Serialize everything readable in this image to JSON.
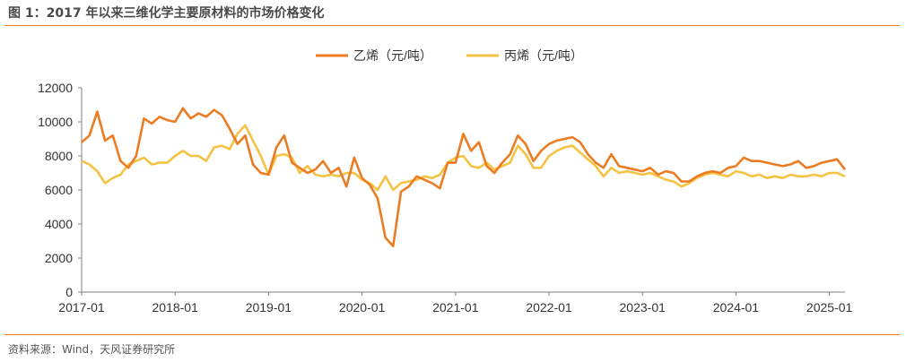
{
  "figure": {
    "title": "图 1：2017 年以来三维化学主要原材料的市场价格变化",
    "source": "资料来源：Wind，天风证券研究所",
    "accent_color": "#ec7c22"
  },
  "chart_data": {
    "type": "line",
    "title": "",
    "xlabel": "",
    "ylabel": "",
    "ylim": [
      0,
      12000
    ],
    "yticks": [
      0,
      2000,
      4000,
      6000,
      8000,
      10000,
      12000
    ],
    "xlim": [
      "2017-01",
      "2025-03"
    ],
    "xticks": [
      "2017-01",
      "2018-01",
      "2019-01",
      "2020-01",
      "2021-01",
      "2022-01",
      "2023-01",
      "2024-01",
      "2025-01"
    ],
    "grid": false,
    "legend_position": "top-center",
    "series": [
      {
        "name": "乙烯（元/吨）",
        "color": "#ec7c22",
        "x": [
          "2017-01",
          "2017-02",
          "2017-03",
          "2017-04",
          "2017-05",
          "2017-06",
          "2017-07",
          "2017-08",
          "2017-09",
          "2017-10",
          "2017-11",
          "2017-12",
          "2018-01",
          "2018-02",
          "2018-03",
          "2018-04",
          "2018-05",
          "2018-06",
          "2018-07",
          "2018-08",
          "2018-09",
          "2018-10",
          "2018-11",
          "2018-12",
          "2019-01",
          "2019-02",
          "2019-03",
          "2019-04",
          "2019-05",
          "2019-06",
          "2019-07",
          "2019-08",
          "2019-09",
          "2019-10",
          "2019-11",
          "2019-12",
          "2020-01",
          "2020-02",
          "2020-03",
          "2020-04",
          "2020-05",
          "2020-06",
          "2020-07",
          "2020-08",
          "2020-09",
          "2020-10",
          "2020-11",
          "2020-12",
          "2021-01",
          "2021-02",
          "2021-03",
          "2021-04",
          "2021-05",
          "2021-06",
          "2021-07",
          "2021-08",
          "2021-09",
          "2021-10",
          "2021-11",
          "2021-12",
          "2022-01",
          "2022-02",
          "2022-03",
          "2022-04",
          "2022-05",
          "2022-06",
          "2022-07",
          "2022-08",
          "2022-09",
          "2022-10",
          "2022-11",
          "2022-12",
          "2023-01",
          "2023-02",
          "2023-03",
          "2023-04",
          "2023-05",
          "2023-06",
          "2023-07",
          "2023-08",
          "2023-09",
          "2023-10",
          "2023-11",
          "2023-12",
          "2024-01",
          "2024-02",
          "2024-03",
          "2024-04",
          "2024-05",
          "2024-06",
          "2024-07",
          "2024-08",
          "2024-09",
          "2024-10",
          "2024-11",
          "2024-12",
          "2025-01",
          "2025-02",
          "2025-03"
        ],
        "values": [
          8800,
          9200,
          10600,
          8900,
          9200,
          7700,
          7300,
          8000,
          10200,
          9900,
          10300,
          10100,
          10000,
          10800,
          10200,
          10500,
          10300,
          10700,
          10400,
          9600,
          8700,
          9200,
          7500,
          7000,
          6900,
          8500,
          9200,
          7600,
          7300,
          7000,
          7200,
          7700,
          7000,
          7300,
          6200,
          7900,
          6700,
          6300,
          5500,
          3200,
          2700,
          5900,
          6200,
          6800,
          6600,
          6400,
          6100,
          7600,
          7600,
          9300,
          8300,
          8800,
          7400,
          7000,
          7600,
          8100,
          9200,
          8700,
          7700,
          8300,
          8700,
          8900,
          9000,
          9100,
          8800,
          8100,
          7600,
          7300,
          8100,
          7400,
          7300,
          7200,
          7100,
          7300,
          6900,
          7100,
          7000,
          6500,
          6500,
          6800,
          7000,
          7100,
          7000,
          7300,
          7400,
          7900,
          7700,
          7700,
          7600,
          7500,
          7400,
          7500,
          7700,
          7300,
          7400,
          7600,
          7700,
          7800,
          7200
        ]
      },
      {
        "name": "丙烯（元/吨）",
        "color": "#f5c344",
        "x": [
          "2017-01",
          "2017-02",
          "2017-03",
          "2017-04",
          "2017-05",
          "2017-06",
          "2017-07",
          "2017-08",
          "2017-09",
          "2017-10",
          "2017-11",
          "2017-12",
          "2018-01",
          "2018-02",
          "2018-03",
          "2018-04",
          "2018-05",
          "2018-06",
          "2018-07",
          "2018-08",
          "2018-09",
          "2018-10",
          "2018-11",
          "2018-12",
          "2019-01",
          "2019-02",
          "2019-03",
          "2019-04",
          "2019-05",
          "2019-06",
          "2019-07",
          "2019-08",
          "2019-09",
          "2019-10",
          "2019-11",
          "2019-12",
          "2020-01",
          "2020-02",
          "2020-03",
          "2020-04",
          "2020-05",
          "2020-06",
          "2020-07",
          "2020-08",
          "2020-09",
          "2020-10",
          "2020-11",
          "2020-12",
          "2021-01",
          "2021-02",
          "2021-03",
          "2021-04",
          "2021-05",
          "2021-06",
          "2021-07",
          "2021-08",
          "2021-09",
          "2021-10",
          "2021-11",
          "2021-12",
          "2022-01",
          "2022-02",
          "2022-03",
          "2022-04",
          "2022-05",
          "2022-06",
          "2022-07",
          "2022-08",
          "2022-09",
          "2022-10",
          "2022-11",
          "2022-12",
          "2023-01",
          "2023-02",
          "2023-03",
          "2023-04",
          "2023-05",
          "2023-06",
          "2023-07",
          "2023-08",
          "2023-09",
          "2023-10",
          "2023-11",
          "2023-12",
          "2024-01",
          "2024-02",
          "2024-03",
          "2024-04",
          "2024-05",
          "2024-06",
          "2024-07",
          "2024-08",
          "2024-09",
          "2024-10",
          "2024-11",
          "2024-12",
          "2025-01",
          "2025-02",
          "2025-03"
        ],
        "values": [
          7700,
          7500,
          7100,
          6400,
          6700,
          6900,
          7500,
          7700,
          7900,
          7500,
          7600,
          7600,
          8000,
          8300,
          8000,
          8000,
          7700,
          8500,
          8600,
          8400,
          9300,
          9800,
          8900,
          8000,
          6900,
          8000,
          8100,
          7900,
          7000,
          7400,
          6900,
          6800,
          6900,
          6800,
          7000,
          7000,
          6600,
          6400,
          6000,
          6800,
          6000,
          6400,
          6500,
          6600,
          6800,
          6700,
          6900,
          7600,
          7900,
          8000,
          7400,
          7300,
          7600,
          7200,
          7400,
          7600,
          8600,
          8100,
          7300,
          7300,
          8000,
          8300,
          8500,
          8600,
          8200,
          7800,
          7400,
          6800,
          7300,
          7000,
          7100,
          7000,
          6900,
          7000,
          6800,
          6600,
          6500,
          6200,
          6400,
          6700,
          6900,
          7000,
          6900,
          6800,
          7100,
          7000,
          6800,
          6900,
          6700,
          6800,
          6700,
          6900,
          6800,
          6800,
          6900,
          6800,
          7000,
          7000,
          6800
        ]
      }
    ]
  }
}
